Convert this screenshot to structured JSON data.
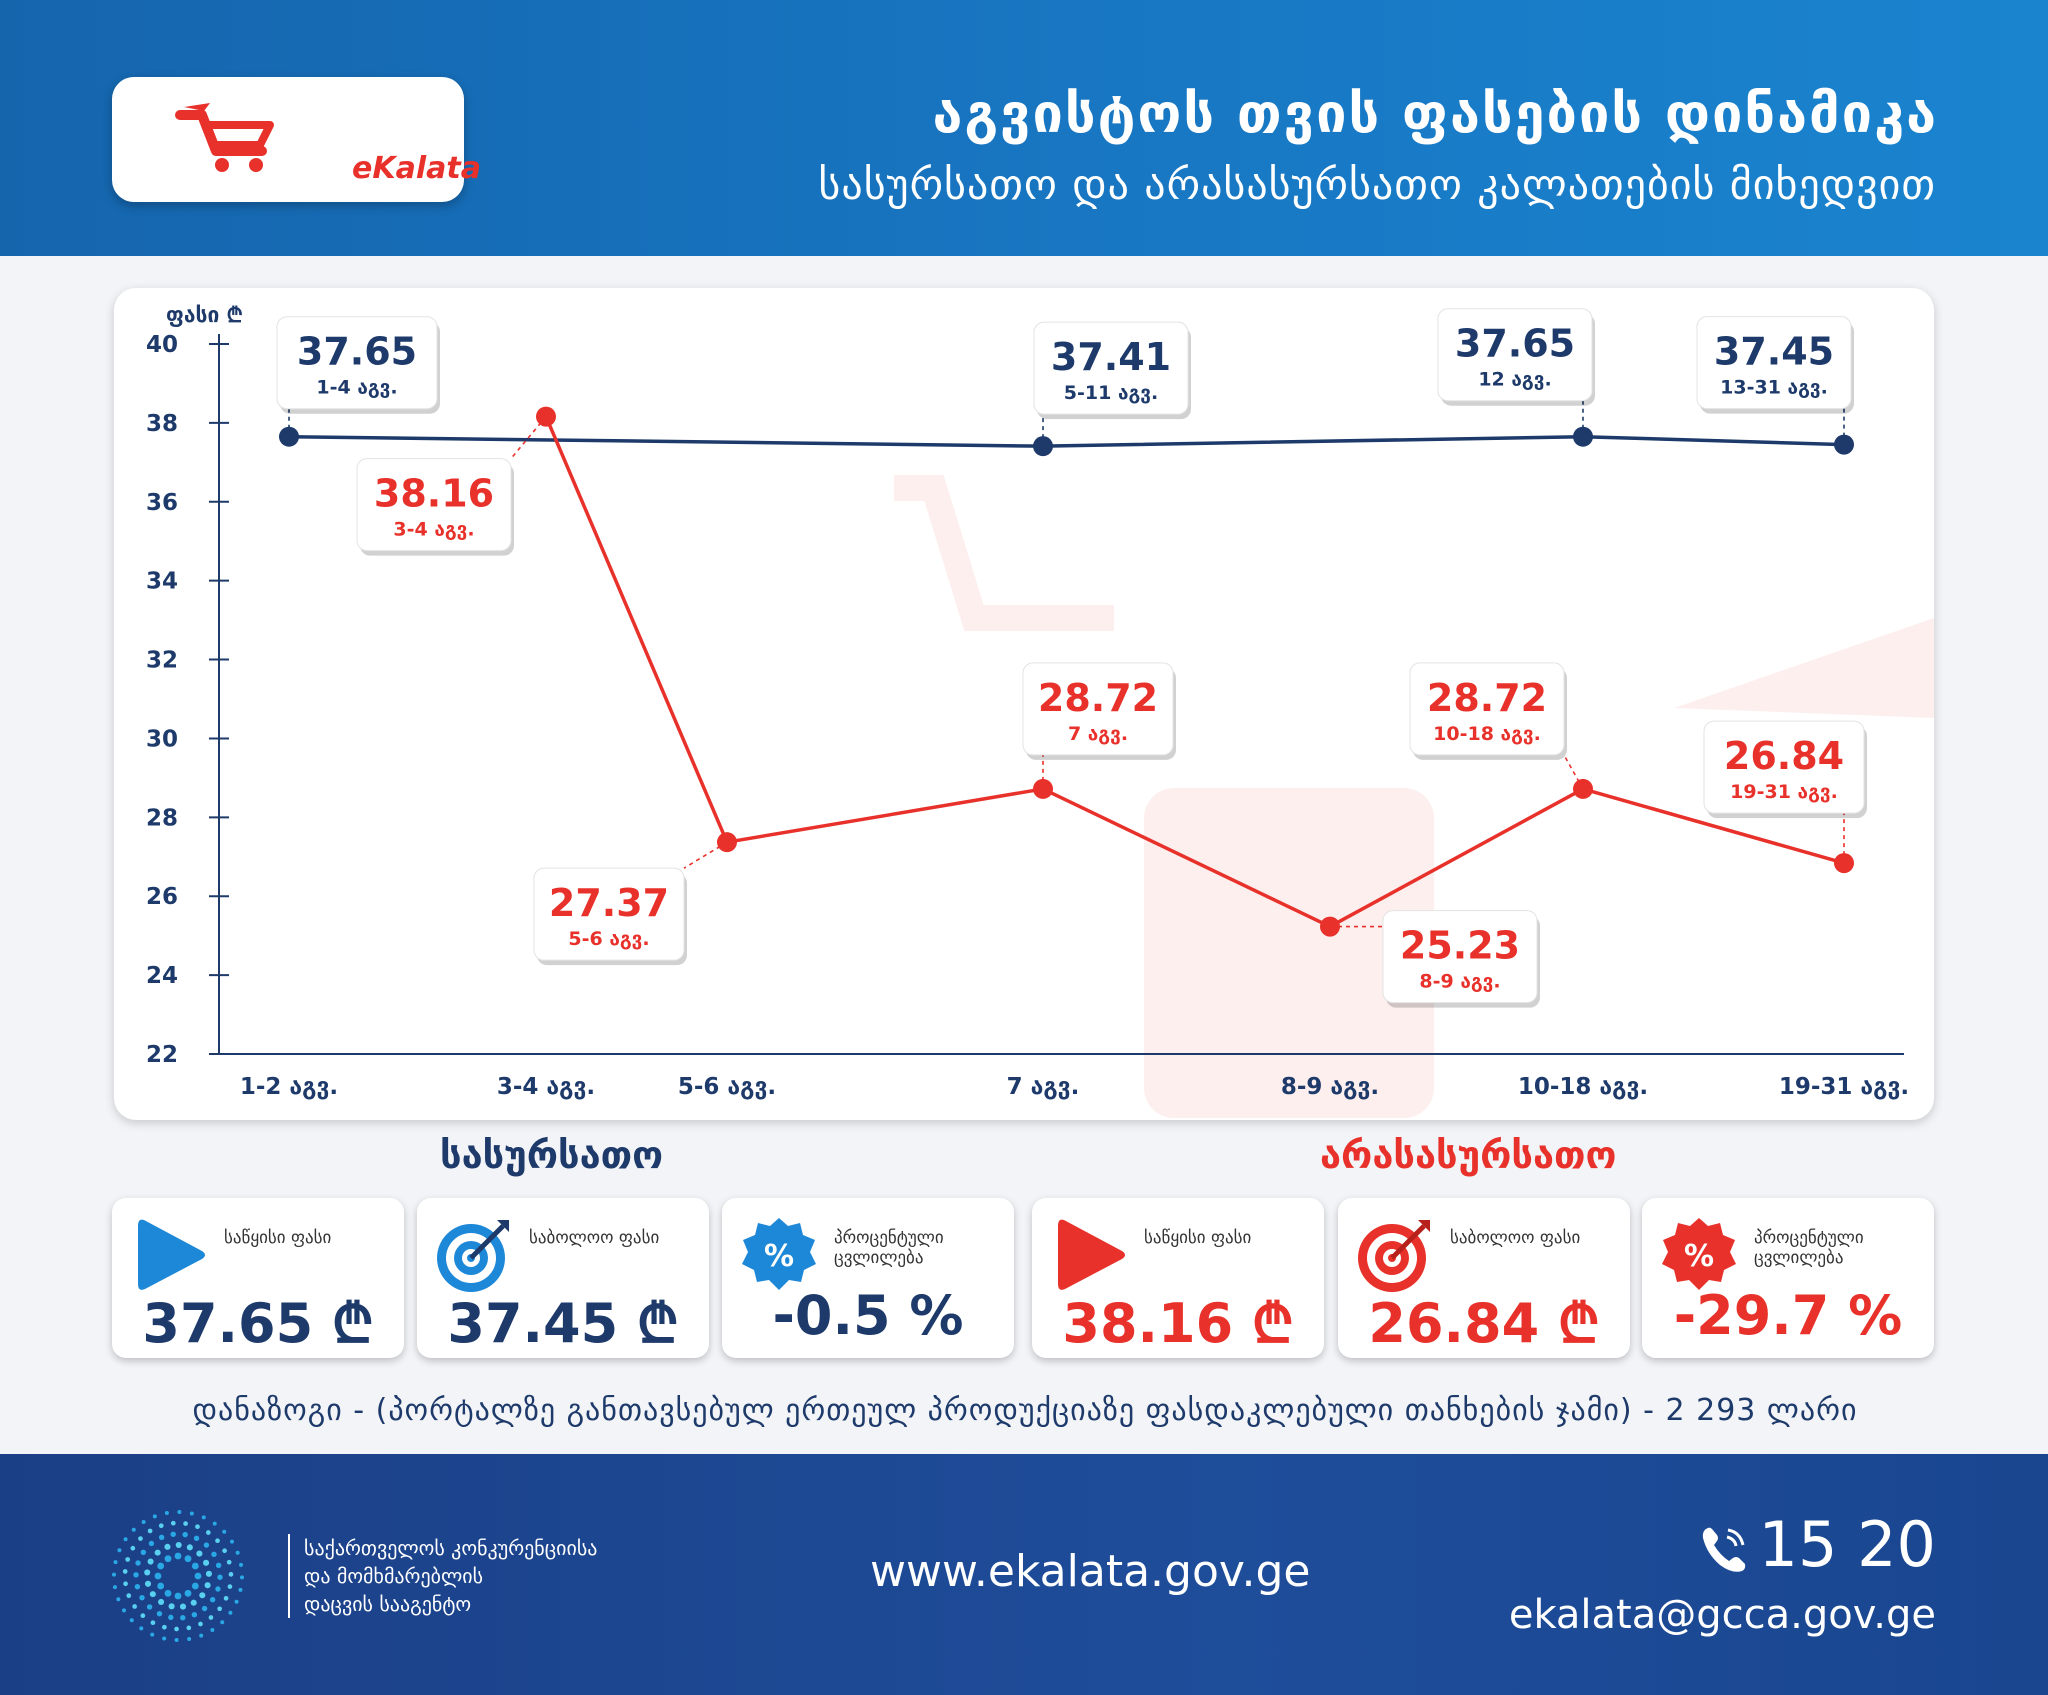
{
  "header": {
    "logo_text": "eKalata",
    "title": "აგვისტოს თვის ფასების დინამიკა",
    "subtitle": "სასურსათო და არასასურსათო კალათების მიხედვით"
  },
  "chart_data": {
    "type": "line",
    "ylabel": "ფასი ₾",
    "ylim": [
      22,
      40
    ],
    "yticks": [
      22,
      24,
      26,
      28,
      30,
      32,
      34,
      36,
      38,
      40
    ],
    "categories": [
      "1-2 აგვ.",
      "3-4 აგვ.",
      "5-6 აგვ.",
      "7 აგვ.",
      "8-9 აგვ.",
      "10-18 აგვ.",
      "19-31 აგვ."
    ],
    "grid": false,
    "series": [
      {
        "name": "სასურსათო",
        "color": "#1d3a6b",
        "points": [
          {
            "x": "1-2 აგვ.",
            "y": 37.65,
            "label": "37.65",
            "sublabel": "1-4 აგვ."
          },
          {
            "x": "7 აგვ.",
            "y": 37.41,
            "label": "37.41",
            "sublabel": "5-11 აგვ."
          },
          {
            "x": "10-18 აგვ.",
            "y": 37.65,
            "label": "37.65",
            "sublabel": "12 აგვ."
          },
          {
            "x": "19-31 აგვ.",
            "y": 37.45,
            "label": "37.45",
            "sublabel": "13-31 აგვ."
          }
        ]
      },
      {
        "name": "არასასურსათო",
        "color": "#e8312a",
        "points": [
          {
            "x": "3-4 აგვ.",
            "y": 38.16,
            "label": "38.16",
            "sublabel": "3-4 აგვ."
          },
          {
            "x": "5-6 აგვ.",
            "y": 27.37,
            "label": "27.37",
            "sublabel": "5-6 აგვ."
          },
          {
            "x": "7 აგვ.",
            "y": 28.72,
            "label": "28.72",
            "sublabel": "7 აგვ."
          },
          {
            "x": "8-9 აგვ.",
            "y": 25.23,
            "label": "25.23",
            "sublabel": "8-9 აგვ."
          },
          {
            "x": "10-18 აგვ.",
            "y": 28.72,
            "label": "28.72",
            "sublabel": "10-18 აგვ."
          },
          {
            "x": "19-31 აგვ.",
            "y": 26.84,
            "label": "26.84",
            "sublabel": "19-31 აგვ."
          }
        ]
      }
    ]
  },
  "food": {
    "title": "სასურსათო",
    "cards": [
      {
        "label": "საწყისი ფასი",
        "value": "37.65 ₾",
        "icon": "play-icon"
      },
      {
        "label": "საბოლოო ფასი",
        "value": "37.45 ₾",
        "icon": "target-icon"
      },
      {
        "label": "პროცენტული ცვლილება",
        "value": "-0.5 %",
        "icon": "percent-badge-icon"
      }
    ]
  },
  "nonfood": {
    "title": "არასასურსათო",
    "cards": [
      {
        "label": "საწყისი ფასი",
        "value": "38.16 ₾",
        "icon": "play-icon"
      },
      {
        "label": "საბოლოო ფასი",
        "value": "26.84 ₾",
        "icon": "target-icon"
      },
      {
        "label": "პროცენტული ცვლილება",
        "value": "-29.7 %",
        "icon": "percent-badge-icon"
      }
    ]
  },
  "savings_text": "დანაზოგი - (პორტალზე განთავსებულ ერთეულ პროდუქციაზე ფასდაკლებული თანხების ჯამი) - 2 293 ლარი",
  "footer": {
    "agency_line1": "საქართველოს კონკურენციისა",
    "agency_line2": "და მომხმარებლის",
    "agency_line3": "დაცვის სააგენტო",
    "website": "www.ekalata.gov.ge",
    "phone": "15 20",
    "email": "ekalata@gcca.gov.ge"
  },
  "colors": {
    "navy": "#1d3a6b",
    "red": "#e8312a",
    "header_blue": "#1877c3",
    "footer_blue": "#1e4d9a"
  }
}
